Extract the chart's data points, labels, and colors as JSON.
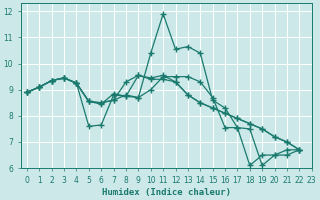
{
  "title": "",
  "xlabel": "Humidex (Indice chaleur)",
  "xlim": [
    -0.5,
    23
  ],
  "ylim": [
    6,
    12.3
  ],
  "yticks": [
    6,
    7,
    8,
    9,
    10,
    11,
    12
  ],
  "xticks": [
    0,
    1,
    2,
    3,
    4,
    5,
    6,
    7,
    8,
    9,
    10,
    11,
    12,
    13,
    14,
    15,
    16,
    17,
    18,
    19,
    20,
    21,
    22,
    23
  ],
  "bg_color": "#cce8e8",
  "grid_color": "#ffffff",
  "line_color": "#1a7a6e",
  "series": [
    [
      8.9,
      9.1,
      9.35,
      9.45,
      9.25,
      7.6,
      7.65,
      8.8,
      8.75,
      8.7,
      10.4,
      11.9,
      10.55,
      10.65,
      10.4,
      8.6,
      8.3,
      7.55,
      7.5,
      6.1,
      6.5,
      6.5,
      6.7
    ],
    [
      8.9,
      9.1,
      9.35,
      9.45,
      9.25,
      8.55,
      8.45,
      8.85,
      8.75,
      9.55,
      9.45,
      9.55,
      9.3,
      8.8,
      8.5,
      8.3,
      8.1,
      7.9,
      7.7,
      7.5,
      7.2,
      7.0,
      6.7
    ],
    [
      8.9,
      9.1,
      9.35,
      9.45,
      9.25,
      8.55,
      8.5,
      8.6,
      9.3,
      9.55,
      9.4,
      9.4,
      9.3,
      8.8,
      8.5,
      8.3,
      8.1,
      7.9,
      7.7,
      7.5,
      7.2,
      7.0,
      6.7
    ],
    [
      8.9,
      9.1,
      9.35,
      9.45,
      9.25,
      8.55,
      8.5,
      8.6,
      8.8,
      8.7,
      9.0,
      9.5,
      9.5,
      9.5,
      9.3,
      8.7,
      7.55,
      7.55,
      6.1,
      6.5,
      6.5,
      6.7,
      6.7
    ]
  ],
  "marker": "+",
  "markersize": 4,
  "linewidth": 0.9
}
